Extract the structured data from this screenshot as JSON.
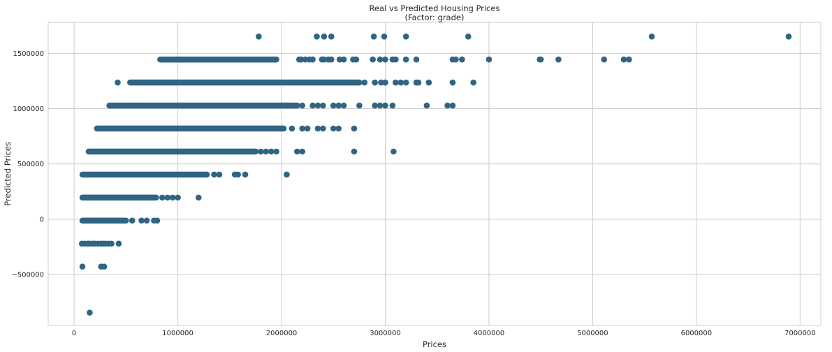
{
  "chart_data": {
    "type": "scatter",
    "title": "Real vs Predicted Housing Prices",
    "subtitle": "(Factor: grade)",
    "xlabel": "Prices",
    "ylabel": "Predicted Prices",
    "xlim": [
      -250000,
      7200000
    ],
    "ylim": [
      -960000,
      1780000
    ],
    "x_ticks": [
      0,
      1000000,
      2000000,
      3000000,
      4000000,
      5000000,
      6000000,
      7000000
    ],
    "x_tick_labels": [
      "0",
      "1000000",
      "2000000",
      "3000000",
      "4000000",
      "5000000",
      "6000000",
      "7000000"
    ],
    "y_ticks": [
      -500000,
      0,
      500000,
      1000000,
      1500000
    ],
    "y_tick_labels": [
      "−500000",
      "0",
      "500000",
      "1000000",
      "1500000"
    ],
    "grid": true,
    "colors": {
      "marker": "#2f6484",
      "grid": "#cccccc",
      "frame": "#cccccc"
    },
    "series": [
      {
        "levels": [
          {
            "y": 1652000,
            "x": [
              1780000,
              2340000,
              2410000,
              2480000,
              2890000,
              2990000,
              3200000,
              3800000,
              5570000,
              6890000
            ]
          },
          {
            "y": 1444000,
            "ranges": [
              [
                830000,
                1950000
              ]
            ],
            "x": [
              2170000,
              2190000,
              2230000,
              2270000,
              2300000,
              2390000,
              2410000,
              2450000,
              2480000,
              2560000,
              2600000,
              2690000,
              2720000,
              2880000,
              2950000,
              3000000,
              3070000,
              3100000,
              3200000,
              3300000,
              3650000,
              3680000,
              3740000,
              4000000,
              4490000,
              4500000,
              4670000,
              5110000,
              5300000,
              5350000
            ]
          },
          {
            "y": 1236000,
            "ranges": [
              [
                540000,
                2750000
              ]
            ],
            "x": [
              420000,
              2800000,
              2900000,
              2960000,
              3000000,
              3100000,
              3150000,
              3200000,
              3300000,
              3320000,
              3420000,
              3650000,
              3850000
            ]
          },
          {
            "y": 1028000,
            "ranges": [
              [
                340000,
                2150000
              ]
            ],
            "x": [
              2200000,
              2300000,
              2350000,
              2400000,
              2500000,
              2550000,
              2600000,
              2750000,
              2900000,
              2950000,
              3000000,
              3070000,
              3400000,
              3600000,
              3650000
            ]
          },
          {
            "y": 820000,
            "ranges": [
              [
                220000,
                2020000
              ]
            ],
            "x": [
              2100000,
              2200000,
              2250000,
              2350000,
              2400000,
              2500000,
              2550000,
              2700000
            ]
          },
          {
            "y": 612000,
            "ranges": [
              [
                140000,
                1750000
              ]
            ],
            "x": [
              1800000,
              1850000,
              1900000,
              1950000,
              2150000,
              2200000,
              2700000,
              3080000
            ]
          },
          {
            "y": 404000,
            "ranges": [
              [
                80000,
                1280000
              ]
            ],
            "x": [
              1350000,
              1400000,
              1550000,
              1580000,
              1650000,
              2050000
            ]
          },
          {
            "y": 196000,
            "ranges": [
              [
                80000,
                790000
              ]
            ],
            "x": [
              850000,
              900000,
              950000,
              1000000,
              1200000
            ]
          },
          {
            "y": -12000,
            "ranges": [
              [
                80000,
                500000
              ]
            ],
            "x": [
              560000,
              650000,
              700000,
              770000,
              800000
            ]
          },
          {
            "y": -220000,
            "x": [
              75000,
              100000,
              130000,
              150000,
              180000,
              200000,
              230000,
              260000,
              280000,
              300000,
              330000,
              360000,
              430000
            ]
          },
          {
            "y": -428000,
            "x": [
              80000,
              260000,
              290000
            ]
          },
          {
            "y": -844000,
            "x": [
              150000
            ]
          }
        ]
      }
    ]
  }
}
